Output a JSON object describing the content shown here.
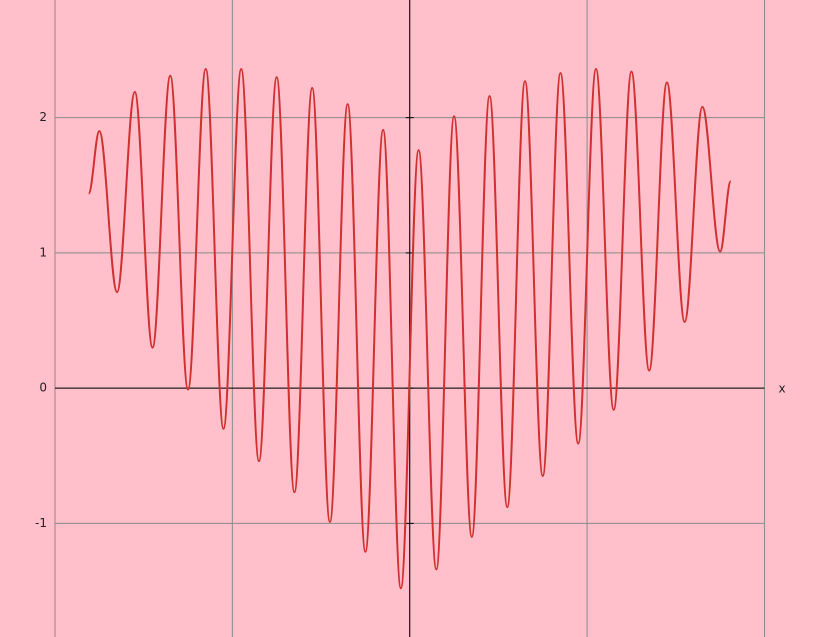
{
  "chart_data": {
    "type": "line",
    "x_label": "x",
    "x": [
      -1.81,
      -1.75,
      -1.65,
      -1.55,
      -1.45,
      -1.35,
      -1.25,
      -1.15,
      -1.05,
      -0.95,
      -0.85,
      -0.75,
      -0.65,
      -0.55,
      -0.45,
      -0.35,
      -0.25,
      -0.15,
      -0.05,
      0.05,
      0.15,
      0.25,
      0.35,
      0.45,
      0.55,
      0.65,
      0.75,
      0.85,
      0.95,
      1.05,
      1.15,
      1.25,
      1.35,
      1.45,
      1.55,
      1.65,
      1.75,
      1.81
    ],
    "series": [
      {
        "color": "#d03030",
        "values": [
          1.44,
          1.9,
          0.71,
          2.19,
          0.3,
          2.31,
          -0.01,
          2.36,
          -0.3,
          2.36,
          -0.54,
          2.3,
          -0.77,
          2.22,
          -0.99,
          2.1,
          -1.21,
          1.91,
          -1.48,
          1.76,
          -1.34,
          2.01,
          -1.1,
          2.16,
          -0.88,
          2.27,
          -0.65,
          2.33,
          -0.41,
          2.36,
          -0.16,
          2.34,
          0.13,
          2.26,
          0.49,
          2.08,
          1.01,
          1.53
        ]
      }
    ],
    "xlim": [
      -2.31,
      2.33
    ],
    "ylim": [
      -1.84,
      2.87
    ],
    "xticks": [
      -2,
      -1,
      0,
      1,
      2
    ],
    "yticks": [
      -1,
      0,
      1,
      2
    ],
    "grid": true,
    "background": "#ffc0cb"
  }
}
